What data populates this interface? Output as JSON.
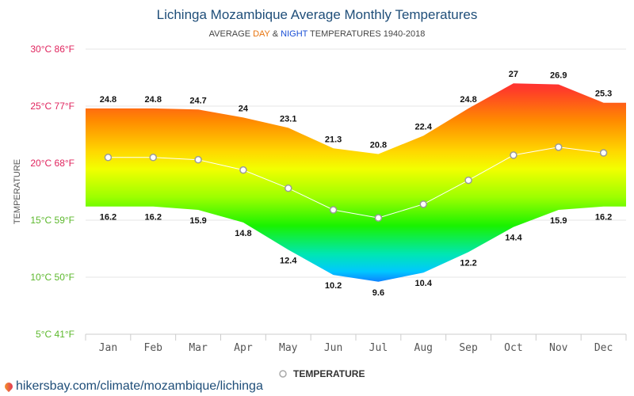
{
  "chart_data": {
    "type": "area",
    "title": "Lichinga Mozambique Average Monthly Temperatures",
    "subtitle": {
      "prefix": "AVERAGE ",
      "day": "DAY",
      "amp": " & ",
      "night": "NIGHT",
      "suffix": " TEMPERATURES 1940-2018"
    },
    "ylabel": "TEMPERATURE",
    "categories": [
      "Jan",
      "Feb",
      "Mar",
      "Apr",
      "May",
      "Jun",
      "Jul",
      "Aug",
      "Sep",
      "Oct",
      "Nov",
      "Dec"
    ],
    "series": [
      {
        "name": "",
        "values": [
          24.8,
          24.8,
          24.7,
          24,
          23.1,
          21.3,
          20.8,
          22.4,
          24.8,
          27,
          26.9,
          25.3
        ]
      },
      {
        "name": "",
        "values": [
          16.2,
          16.2,
          15.9,
          14.8,
          12.4,
          10.2,
          9.6,
          10.4,
          12.2,
          14.4,
          15.9,
          16.2
        ]
      },
      {
        "name": "TEMPERATURE",
        "values": [
          20.5,
          20.5,
          20.3,
          19.4,
          17.8,
          15.9,
          15.2,
          16.4,
          18.5,
          20.7,
          21.4,
          20.9
        ]
      }
    ],
    "yticks": [
      {
        "value": 30,
        "label": "30°C 86°F",
        "color": "#e0245e"
      },
      {
        "value": 25,
        "label": "25°C 77°F",
        "color": "#e0245e"
      },
      {
        "value": 20,
        "label": "20°C 68°F",
        "color": "#e0245e"
      },
      {
        "value": 15,
        "label": "15°C 59°F",
        "color": "#5cb82c"
      },
      {
        "value": 10,
        "label": "10°C 50°F",
        "color": "#5cb82c"
      },
      {
        "value": 5,
        "label": "5°C 41°F",
        "color": "#5cb82c"
      }
    ],
    "ylim": [
      5,
      30
    ],
    "grid": true,
    "legend": "bottom-center",
    "colors": {
      "day_word": "#e8730c",
      "night_word": "#1a4fd6",
      "mean_line": "#ffffff",
      "grid": "#e6e6e6"
    }
  },
  "footer": {
    "url": "hikersbay.com/climate/mozambique/lichinga"
  }
}
